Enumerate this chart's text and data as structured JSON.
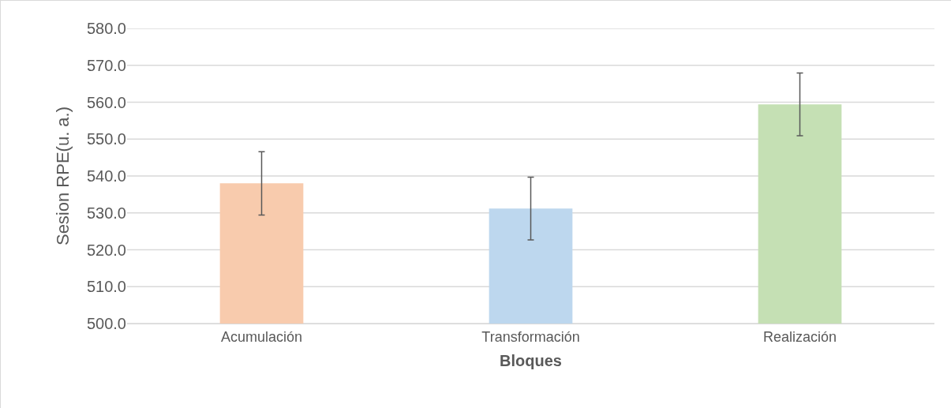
{
  "chart_data": {
    "type": "bar",
    "xlabel": "Bloques",
    "ylabel": "Sesion RPE(u. a.)",
    "categories": [
      "Acumulación",
      "Transformación",
      "Realización"
    ],
    "values": [
      538.0,
      531.2,
      559.4
    ],
    "colors": [
      "#f8cbad",
      "#bdd7ee",
      "#c5e0b4"
    ],
    "errors": [
      8.6,
      8.5,
      8.5
    ],
    "ylim": [
      500,
      580
    ],
    "yticks": [
      {
        "value": 500,
        "label": "500.0"
      },
      {
        "value": 510,
        "label": "510.0"
      },
      {
        "value": 520,
        "label": "520.0"
      },
      {
        "value": 530,
        "label": "530.0"
      },
      {
        "value": 540,
        "label": "540.0"
      },
      {
        "value": 550,
        "label": "550.0"
      },
      {
        "value": 560,
        "label": "560.0"
      },
      {
        "value": 570,
        "label": "570.0"
      },
      {
        "value": 580,
        "label": "580.0"
      }
    ],
    "grid": "y"
  }
}
